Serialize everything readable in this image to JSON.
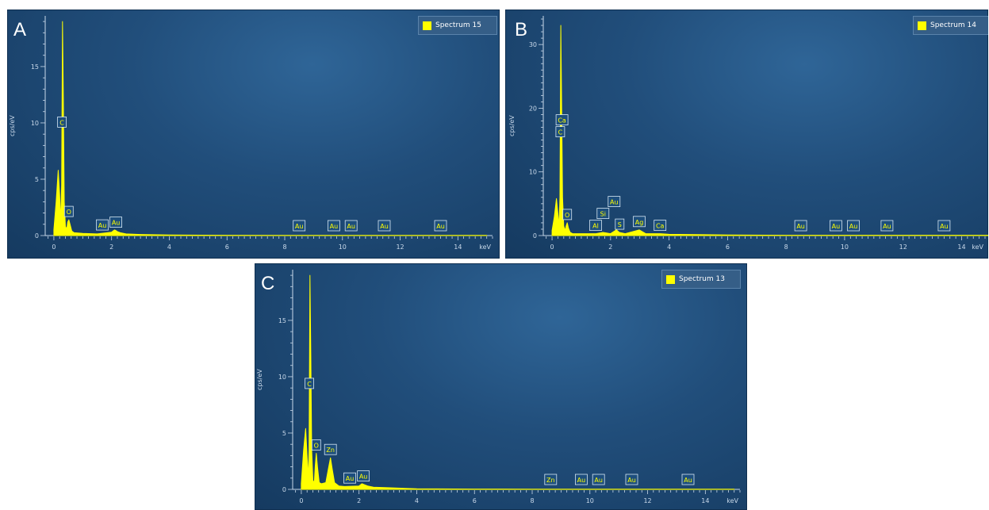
{
  "colors": {
    "spectrum": "#ffff00",
    "background": "#214e7b",
    "axis": "#c9d9ea"
  },
  "panels": [
    {
      "letter": "A",
      "legend": "Spectrum 15",
      "ylabel": "cps/eV",
      "xunit": "keV"
    },
    {
      "letter": "B",
      "legend": "Spectrum 14",
      "ylabel": "cps/eV",
      "xunit": "keV"
    },
    {
      "letter": "C",
      "legend": "Spectrum 13",
      "ylabel": "cps/eV",
      "xunit": "keV"
    }
  ],
  "chart_data": [
    {
      "type": "line",
      "title": "",
      "legend": [
        "Spectrum 15"
      ],
      "xlabel": "keV",
      "ylabel": "cps/eV",
      "xlim": [
        -0.3,
        15.2
      ],
      "ylim": [
        0,
        19.5
      ],
      "xticks": [
        0,
        2,
        4,
        6,
        8,
        10,
        12,
        14
      ],
      "yticks": [
        0,
        5,
        10,
        15
      ],
      "series": [
        {
          "name": "Spectrum 15",
          "x": [
            0.0,
            0.08,
            0.15,
            0.2,
            0.24,
            0.27,
            0.3,
            0.33,
            0.36,
            0.4,
            0.45,
            0.48,
            0.52,
            0.56,
            0.62,
            0.7,
            1.0,
            1.5,
            2.0,
            2.1,
            2.15,
            2.2,
            2.3,
            2.5,
            3.0,
            4.0,
            6.0,
            8.0,
            10.0,
            12.0,
            14.0,
            15.0
          ],
          "values": [
            0.5,
            3.0,
            5.8,
            3.6,
            1.2,
            4.5,
            19.0,
            12.0,
            3.0,
            0.8,
            0.6,
            1.2,
            1.4,
            1.0,
            0.4,
            0.25,
            0.2,
            0.15,
            0.3,
            0.5,
            0.45,
            0.35,
            0.25,
            0.15,
            0.1,
            0.05,
            0.03,
            0.02,
            0.02,
            0.02,
            0.02,
            0.02
          ]
        }
      ],
      "peaks": [
        {
          "label": "C",
          "x": 0.28
        },
        {
          "label": "O",
          "x": 0.52
        },
        {
          "label": "Au",
          "x": 1.68
        },
        {
          "label": "Au",
          "x": 2.15
        },
        {
          "label": "Au",
          "x": 8.5
        },
        {
          "label": "Au",
          "x": 9.7
        },
        {
          "label": "Au",
          "x": 10.3
        },
        {
          "label": "Au",
          "x": 11.45
        },
        {
          "label": "Au",
          "x": 13.4
        }
      ]
    },
    {
      "type": "line",
      "title": "",
      "legend": [
        "Spectrum 14"
      ],
      "xlabel": "keV",
      "ylabel": "cps/eV",
      "xlim": [
        -0.3,
        14.8
      ],
      "ylim": [
        0,
        34.5
      ],
      "xticks": [
        0,
        2,
        4,
        6,
        8,
        10,
        12,
        14
      ],
      "yticks": [
        0,
        10,
        20,
        30
      ],
      "series": [
        {
          "name": "Spectrum 14",
          "x": [
            0.0,
            0.08,
            0.15,
            0.2,
            0.24,
            0.27,
            0.3,
            0.33,
            0.36,
            0.4,
            0.45,
            0.48,
            0.52,
            0.56,
            0.62,
            0.7,
            1.0,
            1.5,
            1.74,
            2.0,
            2.1,
            2.2,
            2.3,
            2.5,
            2.98,
            3.2,
            3.7,
            4.0,
            6.0,
            8.0,
            10.0,
            12.0,
            14.0,
            15.0
          ],
          "values": [
            0.8,
            3.0,
            5.8,
            3.5,
            1.5,
            6.0,
            33.0,
            20.0,
            6.0,
            1.5,
            0.8,
            1.5,
            2.0,
            1.2,
            0.5,
            0.3,
            0.3,
            0.3,
            0.5,
            0.3,
            0.6,
            0.9,
            0.5,
            0.3,
            0.9,
            0.3,
            0.3,
            0.2,
            0.1,
            0.05,
            0.05,
            0.05,
            0.05,
            0.05
          ]
        }
      ],
      "peaks": [
        {
          "label": "C",
          "x": 0.28
        },
        {
          "label": "Ca",
          "x": 0.34
        },
        {
          "label": "O",
          "x": 0.52
        },
        {
          "label": "Al",
          "x": 1.49
        },
        {
          "label": "Si",
          "x": 1.74
        },
        {
          "label": "Au",
          "x": 2.12
        },
        {
          "label": "S",
          "x": 2.31
        },
        {
          "label": "Ag",
          "x": 2.98
        },
        {
          "label": "Ca",
          "x": 3.69
        },
        {
          "label": "Au",
          "x": 8.5
        },
        {
          "label": "Au",
          "x": 9.7
        },
        {
          "label": "Au",
          "x": 10.3
        },
        {
          "label": "Au",
          "x": 11.45
        },
        {
          "label": "Au",
          "x": 13.4
        }
      ]
    },
    {
      "type": "line",
      "title": "",
      "legend": [
        "Spectrum 13"
      ],
      "xlabel": "keV",
      "ylabel": "cps/eV",
      "xlim": [
        -0.3,
        15.2
      ],
      "ylim": [
        0,
        19.5
      ],
      "xticks": [
        0,
        2,
        4,
        6,
        8,
        10,
        12,
        14
      ],
      "yticks": [
        0,
        5,
        10,
        15
      ],
      "series": [
        {
          "name": "Spectrum 13",
          "x": [
            0.0,
            0.08,
            0.15,
            0.2,
            0.24,
            0.27,
            0.3,
            0.33,
            0.36,
            0.4,
            0.45,
            0.48,
            0.52,
            0.56,
            0.62,
            0.7,
            0.85,
            0.95,
            1.01,
            1.07,
            1.15,
            1.3,
            1.5,
            2.0,
            2.1,
            2.2,
            2.3,
            2.5,
            3.0,
            4.0,
            6.0,
            8.0,
            10.0,
            12.0,
            14.0,
            15.0
          ],
          "values": [
            0.5,
            3.5,
            5.4,
            3.0,
            1.0,
            3.5,
            19.0,
            12.0,
            3.5,
            0.8,
            0.6,
            2.0,
            3.2,
            2.0,
            0.6,
            0.5,
            0.6,
            2.0,
            2.8,
            1.8,
            0.6,
            0.3,
            0.25,
            0.3,
            0.5,
            0.4,
            0.3,
            0.2,
            0.15,
            0.05,
            0.03,
            0.02,
            0.02,
            0.02,
            0.02,
            0.02
          ]
        }
      ],
      "peaks": [
        {
          "label": "C",
          "x": 0.28
        },
        {
          "label": "O",
          "x": 0.52
        },
        {
          "label": "Zn",
          "x": 1.01
        },
        {
          "label": "Au",
          "x": 1.68
        },
        {
          "label": "Au",
          "x": 2.15
        },
        {
          "label": "Zn",
          "x": 8.64
        },
        {
          "label": "Au",
          "x": 9.7
        },
        {
          "label": "Au",
          "x": 10.3
        },
        {
          "label": "Au",
          "x": 11.45
        },
        {
          "label": "Au",
          "x": 13.4
        }
      ]
    }
  ]
}
